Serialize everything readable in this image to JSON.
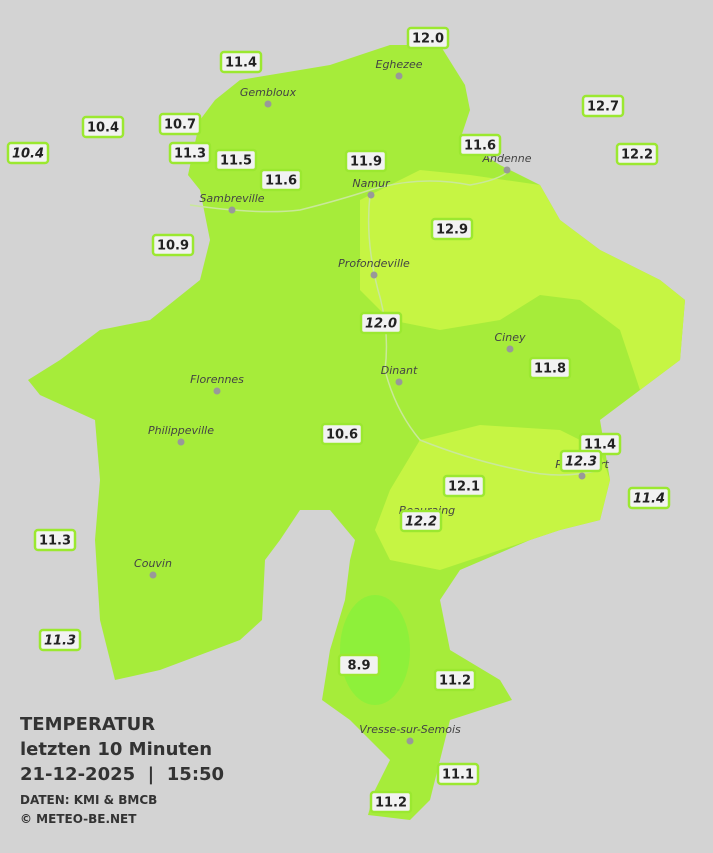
{
  "legend": {
    "title": "TEMPERATUR",
    "subtitle": "letzten 10 Minuten",
    "datetime": "21-12-2025  |  15:50",
    "source": "DATEN: KMI & BMCB",
    "copyright": "© METEO-BE.NET"
  },
  "cities": [
    "Eghezee",
    "Gembloux",
    "Andenne",
    "Namur",
    "Sambreville",
    "Profondeville",
    "Ciney",
    "Dinant",
    "Florennes",
    "Philippeville",
    "Rochefort",
    "Beauraing",
    "Couvin",
    "Vresse-sur-Semois"
  ],
  "stations": [
    {
      "label": "12.0",
      "italic": false
    },
    {
      "label": "11.4",
      "italic": false
    },
    {
      "label": "12.7",
      "italic": false
    },
    {
      "label": "10.4",
      "italic": false
    },
    {
      "label": "10.7",
      "italic": false
    },
    {
      "label": "10.4",
      "italic": true
    },
    {
      "label": "11.3",
      "italic": false
    },
    {
      "label": "11.5",
      "italic": false
    },
    {
      "label": "11.6",
      "italic": false
    },
    {
      "label": "12.2",
      "italic": false
    },
    {
      "label": "11.9",
      "italic": false
    },
    {
      "label": "11.6",
      "italic": false
    },
    {
      "label": "10.9",
      "italic": false
    },
    {
      "label": "12.9",
      "italic": false
    },
    {
      "label": "12.0",
      "italic": true
    },
    {
      "label": "11.8",
      "italic": false
    },
    {
      "label": "10.6",
      "italic": false
    },
    {
      "label": "11.4",
      "italic": false
    },
    {
      "label": "12.3",
      "italic": true
    },
    {
      "label": "11.4",
      "italic": true
    },
    {
      "label": "12.1",
      "italic": false
    },
    {
      "label": "12.2",
      "italic": true
    },
    {
      "label": "11.3",
      "italic": false
    },
    {
      "label": "11.3",
      "italic": true
    },
    {
      "label": "8.9",
      "italic": false
    },
    {
      "label": "11.2",
      "italic": false
    },
    {
      "label": "11.1",
      "italic": false
    },
    {
      "label": "11.2",
      "italic": false
    }
  ]
}
